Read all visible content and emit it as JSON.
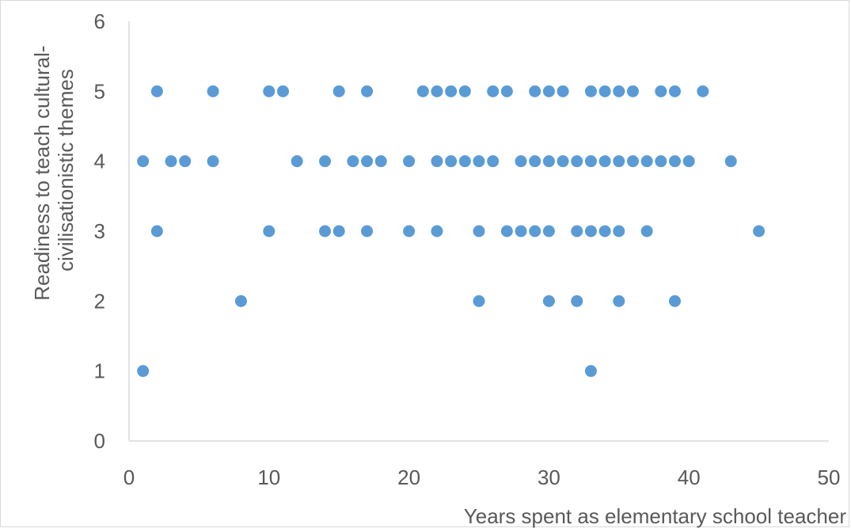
{
  "chart_data": {
    "type": "scatter",
    "xlabel": "Years spent as elementary school teacher",
    "ylabel_lines": [
      "Readiness to teach cultural-",
      "civilisationistic themes"
    ],
    "xlim": [
      0,
      50
    ],
    "ylim": [
      0,
      6
    ],
    "x_ticks": [
      "0",
      "10",
      "20",
      "30",
      "40",
      "50"
    ],
    "y_ticks": [
      "0",
      "1",
      "2",
      "3",
      "4",
      "5",
      "6"
    ],
    "grid": false,
    "legend": "none",
    "marker_color": "#5b9bd5",
    "axis_color": "#d9d9d9",
    "points": [
      {
        "x": 2,
        "y": 5
      },
      {
        "x": 6,
        "y": 5
      },
      {
        "x": 10,
        "y": 5
      },
      {
        "x": 11,
        "y": 5
      },
      {
        "x": 15,
        "y": 5
      },
      {
        "x": 17,
        "y": 5
      },
      {
        "x": 21,
        "y": 5
      },
      {
        "x": 22,
        "y": 5
      },
      {
        "x": 23,
        "y": 5
      },
      {
        "x": 24,
        "y": 5
      },
      {
        "x": 26,
        "y": 5
      },
      {
        "x": 27,
        "y": 5
      },
      {
        "x": 29,
        "y": 5
      },
      {
        "x": 30,
        "y": 5
      },
      {
        "x": 31,
        "y": 5
      },
      {
        "x": 33,
        "y": 5
      },
      {
        "x": 34,
        "y": 5
      },
      {
        "x": 35,
        "y": 5
      },
      {
        "x": 36,
        "y": 5
      },
      {
        "x": 38,
        "y": 5
      },
      {
        "x": 39,
        "y": 5
      },
      {
        "x": 41,
        "y": 5
      },
      {
        "x": 1,
        "y": 4
      },
      {
        "x": 3,
        "y": 4
      },
      {
        "x": 4,
        "y": 4
      },
      {
        "x": 6,
        "y": 4
      },
      {
        "x": 12,
        "y": 4
      },
      {
        "x": 14,
        "y": 4
      },
      {
        "x": 16,
        "y": 4
      },
      {
        "x": 17,
        "y": 4
      },
      {
        "x": 18,
        "y": 4
      },
      {
        "x": 20,
        "y": 4
      },
      {
        "x": 22,
        "y": 4
      },
      {
        "x": 23,
        "y": 4
      },
      {
        "x": 24,
        "y": 4
      },
      {
        "x": 25,
        "y": 4
      },
      {
        "x": 26,
        "y": 4
      },
      {
        "x": 28,
        "y": 4
      },
      {
        "x": 29,
        "y": 4
      },
      {
        "x": 30,
        "y": 4
      },
      {
        "x": 31,
        "y": 4
      },
      {
        "x": 32,
        "y": 4
      },
      {
        "x": 33,
        "y": 4
      },
      {
        "x": 34,
        "y": 4
      },
      {
        "x": 35,
        "y": 4
      },
      {
        "x": 36,
        "y": 4
      },
      {
        "x": 37,
        "y": 4
      },
      {
        "x": 38,
        "y": 4
      },
      {
        "x": 39,
        "y": 4
      },
      {
        "x": 40,
        "y": 4
      },
      {
        "x": 43,
        "y": 4
      },
      {
        "x": 2,
        "y": 3
      },
      {
        "x": 10,
        "y": 3
      },
      {
        "x": 14,
        "y": 3
      },
      {
        "x": 15,
        "y": 3
      },
      {
        "x": 17,
        "y": 3
      },
      {
        "x": 20,
        "y": 3
      },
      {
        "x": 22,
        "y": 3
      },
      {
        "x": 25,
        "y": 3
      },
      {
        "x": 27,
        "y": 3
      },
      {
        "x": 28,
        "y": 3
      },
      {
        "x": 29,
        "y": 3
      },
      {
        "x": 30,
        "y": 3
      },
      {
        "x": 32,
        "y": 3
      },
      {
        "x": 33,
        "y": 3
      },
      {
        "x": 34,
        "y": 3
      },
      {
        "x": 35,
        "y": 3
      },
      {
        "x": 37,
        "y": 3
      },
      {
        "x": 45,
        "y": 3
      },
      {
        "x": 8,
        "y": 2
      },
      {
        "x": 25,
        "y": 2
      },
      {
        "x": 30,
        "y": 2
      },
      {
        "x": 32,
        "y": 2
      },
      {
        "x": 35,
        "y": 2
      },
      {
        "x": 39,
        "y": 2
      },
      {
        "x": 1,
        "y": 1
      },
      {
        "x": 33,
        "y": 1
      }
    ]
  }
}
